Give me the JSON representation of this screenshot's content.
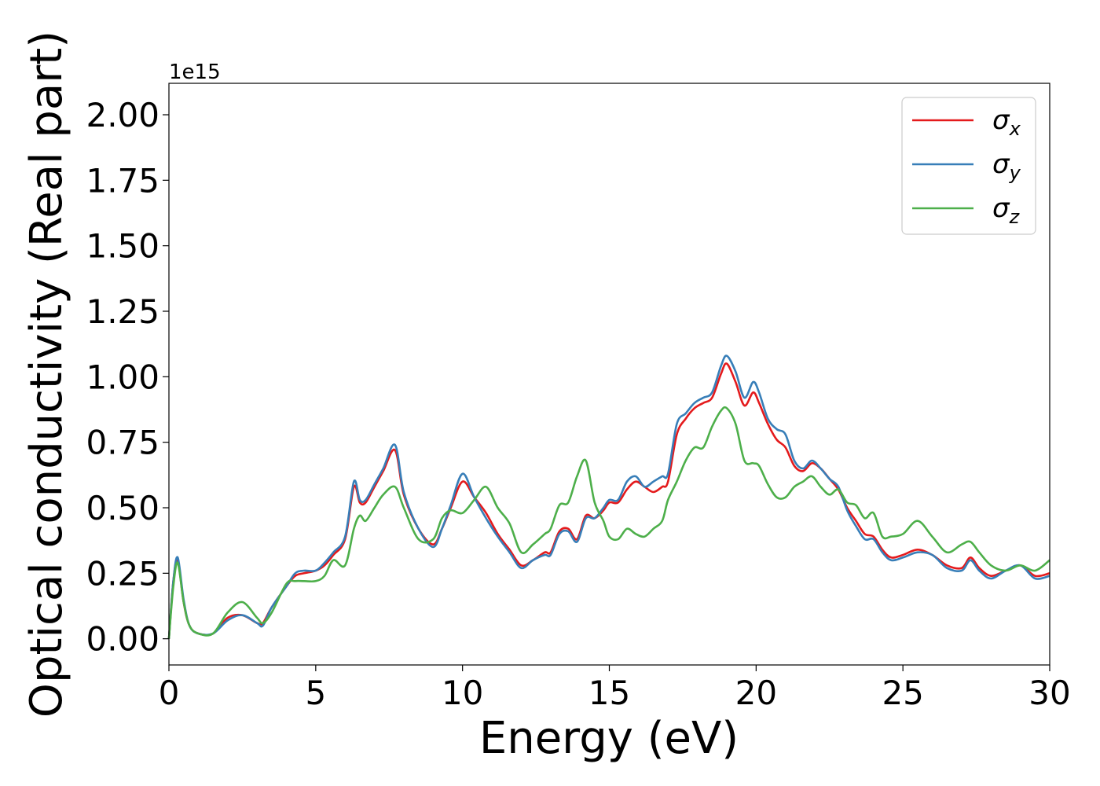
{
  "chart_data": {
    "type": "line",
    "xlabel": "Energy (eV)",
    "ylabel": "Optical conductivity (Real part)",
    "y_offset_label": "1e15",
    "xlim": [
      0,
      30
    ],
    "ylim": [
      -0.1,
      2.12
    ],
    "xticks": [
      0,
      5,
      10,
      15,
      20,
      25,
      30
    ],
    "yticks": [
      0.0,
      0.25,
      0.5,
      0.75,
      1.0,
      1.25,
      1.5,
      1.75,
      2.0
    ],
    "xtick_labels": [
      "0",
      "5",
      "10",
      "15",
      "20",
      "25",
      "30"
    ],
    "ytick_labels": [
      "0.00",
      "0.25",
      "0.50",
      "0.75",
      "1.00",
      "1.25",
      "1.50",
      "1.75",
      "2.00"
    ],
    "grid": false,
    "legend_position": "top-right",
    "x": [
      0,
      0.15,
      0.3,
      0.5,
      0.7,
      1.0,
      1.5,
      2.0,
      2.5,
      3.0,
      3.2,
      3.5,
      4.0,
      4.3,
      4.6,
      5.0,
      5.3,
      5.6,
      6.0,
      6.3,
      6.5,
      6.7,
      7.0,
      7.3,
      7.7,
      8.0,
      8.5,
      9.0,
      9.3,
      9.6,
      10.0,
      10.4,
      10.8,
      11.2,
      11.6,
      12.0,
      12.4,
      12.8,
      13.0,
      13.3,
      13.6,
      13.9,
      14.2,
      14.5,
      14.8,
      15.0,
      15.3,
      15.6,
      15.9,
      16.2,
      16.5,
      16.8,
      17.0,
      17.3,
      17.6,
      17.9,
      18.2,
      18.5,
      18.8,
      19.0,
      19.3,
      19.6,
      19.9,
      20.1,
      20.4,
      20.7,
      21.0,
      21.3,
      21.6,
      21.9,
      22.2,
      22.5,
      22.8,
      23.1,
      23.4,
      23.7,
      24.0,
      24.3,
      24.6,
      25.0,
      25.5,
      26.0,
      26.5,
      27.0,
      27.3,
      27.6,
      28.0,
      28.5,
      29.0,
      29.5,
      30.0
    ],
    "series": [
      {
        "name": "σx",
        "color": "#e41a1c",
        "values": [
          0.0,
          0.22,
          0.3,
          0.14,
          0.05,
          0.02,
          0.02,
          0.08,
          0.09,
          0.06,
          0.06,
          0.12,
          0.2,
          0.24,
          0.25,
          0.26,
          0.28,
          0.32,
          0.38,
          0.58,
          0.52,
          0.52,
          0.58,
          0.64,
          0.72,
          0.55,
          0.42,
          0.36,
          0.42,
          0.5,
          0.6,
          0.54,
          0.48,
          0.4,
          0.34,
          0.28,
          0.3,
          0.33,
          0.33,
          0.41,
          0.42,
          0.38,
          0.47,
          0.46,
          0.49,
          0.52,
          0.52,
          0.57,
          0.6,
          0.58,
          0.56,
          0.58,
          0.6,
          0.78,
          0.84,
          0.88,
          0.9,
          0.92,
          1.01,
          1.05,
          0.98,
          0.89,
          0.94,
          0.9,
          0.82,
          0.76,
          0.73,
          0.66,
          0.64,
          0.67,
          0.65,
          0.61,
          0.57,
          0.5,
          0.45,
          0.4,
          0.39,
          0.34,
          0.31,
          0.32,
          0.34,
          0.32,
          0.28,
          0.27,
          0.31,
          0.27,
          0.24,
          0.26,
          0.28,
          0.24,
          0.25
        ]
      },
      {
        "name": "σy",
        "color": "#377eb8",
        "values": [
          0.0,
          0.22,
          0.31,
          0.15,
          0.05,
          0.02,
          0.02,
          0.07,
          0.09,
          0.06,
          0.05,
          0.12,
          0.2,
          0.25,
          0.26,
          0.26,
          0.29,
          0.33,
          0.39,
          0.6,
          0.53,
          0.53,
          0.59,
          0.65,
          0.74,
          0.56,
          0.42,
          0.35,
          0.42,
          0.51,
          0.63,
          0.54,
          0.46,
          0.39,
          0.33,
          0.27,
          0.3,
          0.32,
          0.32,
          0.4,
          0.41,
          0.37,
          0.46,
          0.46,
          0.5,
          0.53,
          0.53,
          0.6,
          0.62,
          0.58,
          0.6,
          0.62,
          0.63,
          0.82,
          0.86,
          0.9,
          0.92,
          0.94,
          1.04,
          1.08,
          1.02,
          0.92,
          0.98,
          0.94,
          0.84,
          0.8,
          0.78,
          0.68,
          0.65,
          0.68,
          0.65,
          0.61,
          0.58,
          0.49,
          0.43,
          0.38,
          0.38,
          0.33,
          0.3,
          0.31,
          0.33,
          0.32,
          0.27,
          0.26,
          0.3,
          0.26,
          0.23,
          0.26,
          0.28,
          0.23,
          0.24
        ]
      },
      {
        "name": "σz",
        "color": "#4daf4a",
        "values": [
          0.0,
          0.2,
          0.29,
          0.14,
          0.05,
          0.02,
          0.02,
          0.1,
          0.14,
          0.08,
          0.06,
          0.1,
          0.21,
          0.22,
          0.22,
          0.22,
          0.24,
          0.3,
          0.28,
          0.42,
          0.47,
          0.45,
          0.5,
          0.55,
          0.58,
          0.5,
          0.38,
          0.38,
          0.46,
          0.49,
          0.48,
          0.53,
          0.58,
          0.5,
          0.44,
          0.33,
          0.36,
          0.4,
          0.42,
          0.51,
          0.52,
          0.62,
          0.68,
          0.52,
          0.45,
          0.39,
          0.38,
          0.42,
          0.4,
          0.39,
          0.42,
          0.45,
          0.53,
          0.6,
          0.68,
          0.73,
          0.73,
          0.81,
          0.87,
          0.88,
          0.82,
          0.68,
          0.67,
          0.66,
          0.59,
          0.54,
          0.54,
          0.58,
          0.6,
          0.62,
          0.58,
          0.55,
          0.57,
          0.52,
          0.51,
          0.46,
          0.48,
          0.39,
          0.39,
          0.4,
          0.45,
          0.39,
          0.33,
          0.36,
          0.37,
          0.33,
          0.28,
          0.26,
          0.28,
          0.26,
          0.3
        ]
      }
    ]
  }
}
